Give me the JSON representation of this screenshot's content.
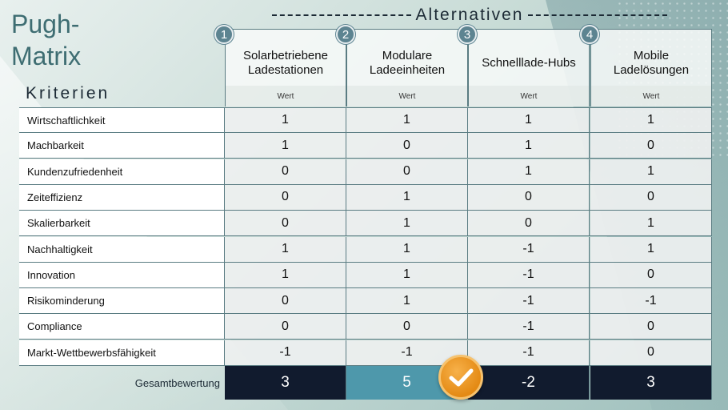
{
  "title": "Pugh-\nMatrix",
  "title_line1": "Pugh-",
  "title_line2": "Matrix",
  "alternatives_header": "Alternativen",
  "criteria_header": "Kriterien",
  "alternatives": [
    {
      "number": "1",
      "name": "Solarbetriebene Ladestationen",
      "unit": "Wert",
      "total": "3"
    },
    {
      "number": "2",
      "name": "Modulare Ladeeinheiten",
      "unit": "Wert",
      "total": "5"
    },
    {
      "number": "3",
      "name": "Schnelllade-Hubs",
      "unit": "Wert",
      "total": "-2"
    },
    {
      "number": "4",
      "name": "Mobile Ladelösungen",
      "unit": "Wert",
      "total": "3"
    }
  ],
  "criteria": [
    {
      "name": "Wirtschaftlichkeit",
      "values": [
        "1",
        "1",
        "1",
        "1"
      ]
    },
    {
      "name": "Machbarkeit",
      "values": [
        "1",
        "0",
        "1",
        "0"
      ]
    },
    {
      "name": "Kundenzufriedenheit",
      "values": [
        "0",
        "0",
        "1",
        "1"
      ]
    },
    {
      "name": "Zeiteffizienz",
      "values": [
        "0",
        "1",
        "0",
        "0"
      ]
    },
    {
      "name": "Skalierbarkeit",
      "values": [
        "0",
        "1",
        "0",
        "1"
      ]
    },
    {
      "name": "Nachhaltigkeit",
      "values": [
        "1",
        "1",
        "-1",
        "1"
      ]
    },
    {
      "name": "Innovation",
      "values": [
        "1",
        "1",
        "-1",
        "0"
      ]
    },
    {
      "name": "Risikominderung",
      "values": [
        "0",
        "1",
        "-1",
        "-1"
      ]
    },
    {
      "name": "Compliance",
      "values": [
        "0",
        "0",
        "-1",
        "0"
      ]
    },
    {
      "name": "Markt-Wettbewerbsfähigkeit",
      "values": [
        "-1",
        "-1",
        "-1",
        "0"
      ]
    }
  ],
  "total_label": "Gesamtbewertung",
  "best_alternative_index": 1,
  "icons": {
    "check": "check-icon"
  },
  "colors": {
    "title": "#3e6d72",
    "total_bg": "#111b2e",
    "best_bg": "#4e98ab",
    "check": "#e48a14"
  }
}
